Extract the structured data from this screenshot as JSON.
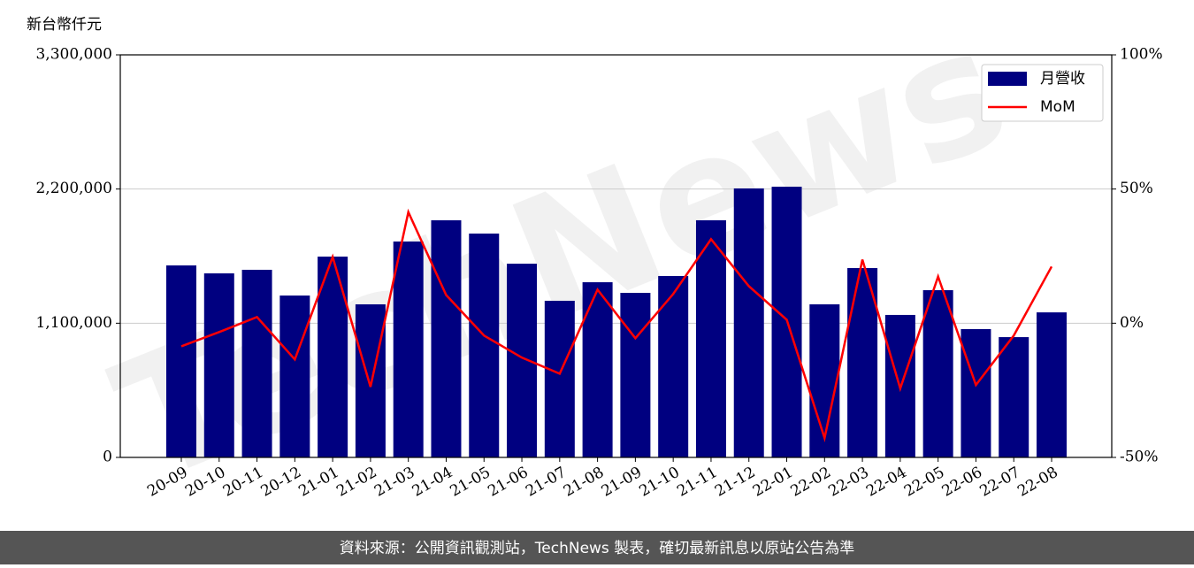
{
  "chart_data": {
    "type": "bar",
    "y_label": "新台幣仟元",
    "watermark": "TechNews",
    "footer": "資料來源：公開資訊觀測站，TechNews 製表，確切最新訊息以原站公告為準",
    "categories": [
      "20-09",
      "20-10",
      "20-11",
      "20-12",
      "21-01",
      "21-02",
      "21-03",
      "21-04",
      "21-05",
      "21-06",
      "21-07",
      "21-08",
      "21-09",
      "21-10",
      "21-11",
      "21-12",
      "22-01",
      "22-02",
      "22-03",
      "22-04",
      "22-05",
      "22-06",
      "22-07",
      "22-08"
    ],
    "series": [
      {
        "name": "月營收",
        "type": "bar",
        "color": "#000080",
        "values": [
          1574000,
          1509000,
          1538000,
          1327000,
          1646000,
          1255000,
          1770000,
          1944000,
          1835000,
          1588000,
          1284000,
          1436000,
          1349000,
          1487000,
          1944000,
          2205000,
          2219000,
          1255000,
          1552000,
          1168000,
          1371000,
          1052000,
          986000,
          1189000
        ]
      },
      {
        "name": "MoM",
        "type": "line",
        "axis": "y2",
        "color": "#ff0000",
        "values": [
          -8.6,
          -3.3,
          2.3,
          -13.5,
          24.7,
          -23.7,
          41.4,
          10.5,
          -4.6,
          -12.8,
          -18.8,
          12.5,
          -5.6,
          10.9,
          31.3,
          13.8,
          1.3,
          -42.8,
          23.7,
          -24.3,
          17.4,
          -23.0,
          -4.6,
          21.1
        ]
      }
    ],
    "ylim": [
      0,
      3300000
    ],
    "yticks": [
      0,
      {
        "value": 1100000,
        "label": "1,100,000"
      },
      {
        "value": 2200000,
        "label": "2,200,000"
      },
      {
        "value": 3300000,
        "label": "3,300,000"
      }
    ],
    "y2lim": [
      -50,
      100
    ],
    "y2ticks": [
      {
        "value": -50,
        "label": "-50%"
      },
      {
        "value": 0,
        "label": "0%"
      },
      {
        "value": 50,
        "label": "50%"
      },
      {
        "value": 100,
        "label": "100%"
      }
    ],
    "grid": true,
    "legend": "upper right"
  }
}
